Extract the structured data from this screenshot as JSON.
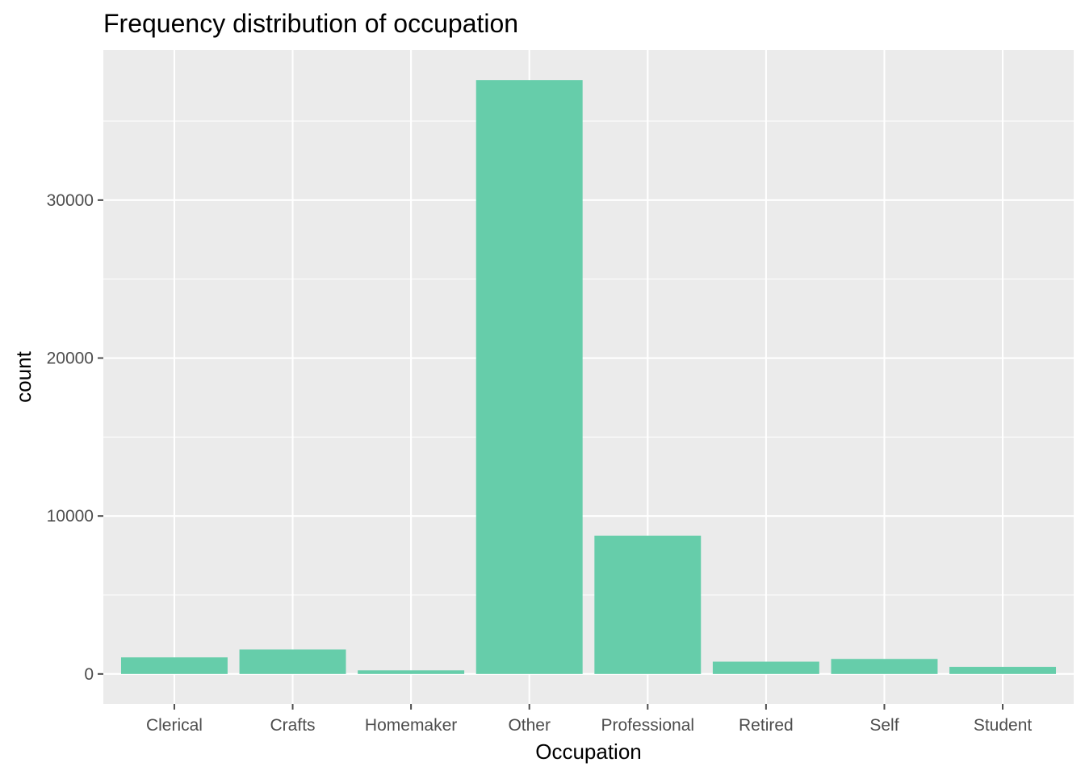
{
  "chart_data": {
    "type": "bar",
    "title": "Frequency distribution of occupation",
    "xlabel": "Occupation",
    "ylabel": "count",
    "categories": [
      "Clerical",
      "Crafts",
      "Homemaker",
      "Other",
      "Professional",
      "Retired",
      "Self",
      "Student"
    ],
    "values": [
      1050,
      1550,
      230,
      37600,
      8750,
      780,
      950,
      450
    ],
    "yticks": [
      0,
      10000,
      20000,
      30000
    ],
    "ytick_labels": [
      "0",
      "10000",
      "20000",
      "30000"
    ],
    "ylim": [
      -1900,
      39500
    ],
    "grid": true,
    "colors": {
      "bar": "#66cdaa",
      "panel": "#ebebeb",
      "grid": "#ffffff",
      "tick": "#4d4d4d"
    }
  }
}
